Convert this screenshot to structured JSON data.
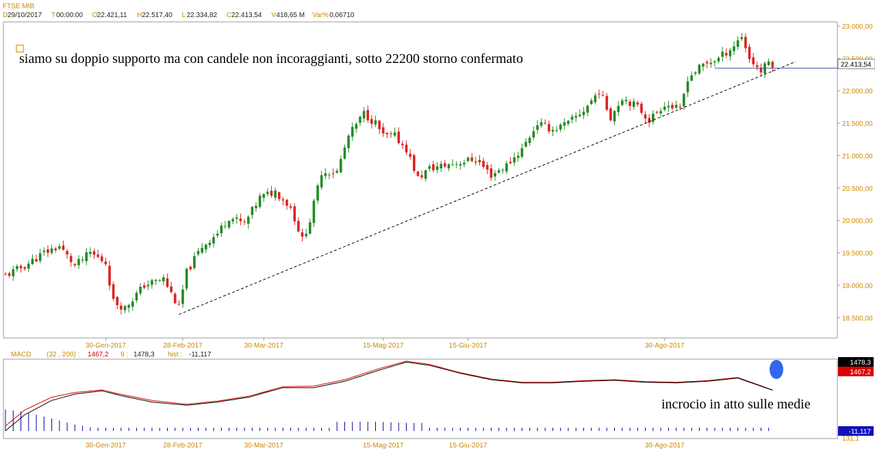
{
  "header": {
    "symbol": "FTSE MIB",
    "items": [
      {
        "key": "D",
        "value": "29/10/2017"
      },
      {
        "key": "T",
        "value": "00:00:00"
      },
      {
        "key": "O",
        "value": "22.421,11"
      },
      {
        "key": "H",
        "value": "22.517,40"
      },
      {
        "key": "L",
        "value": "22.334,82"
      },
      {
        "key": "C",
        "value": "22.413,54"
      },
      {
        "key": "V",
        "value": "418,65 M"
      },
      {
        "key": "Var%",
        "value": "0,06710"
      }
    ]
  },
  "annotations": {
    "main_note": "siamo su doppio supporto ma con candele non incoraggianti, sotto 22200 storno confermato",
    "macd_note": "incrocio in atto sulle medie"
  },
  "colors": {
    "up": "#228b22",
    "down": "#dd2222",
    "axis_text": "#cc8800",
    "macd_line": "#000000",
    "signal_line": "#dd0000",
    "hist": "#000099",
    "last_price_line": "#3355aa",
    "marker": "#3366ee"
  },
  "macd_legend": {
    "name": "MACD",
    "params": "(32 , 200) :",
    "macd_value": "1467,2",
    "signal_label": "9 :",
    "signal_value": "1478,3",
    "hist_label": "hist :",
    "hist_value": "-11,117"
  },
  "chart_data": [
    {
      "type": "candlestick",
      "title": "FTSE MIB",
      "ylim": [
        18250,
        23000
      ],
      "y_ticks": [
        "18.500,00",
        "19.000,00",
        "19.500,00",
        "20.000,00",
        "20.500,00",
        "21.000,00",
        "21.500,00",
        "22.000,00",
        "22.500,00",
        "23.000,00"
      ],
      "y_tick_values": [
        18500,
        19000,
        19500,
        20000,
        20500,
        21000,
        21500,
        22000,
        22500,
        23000
      ],
      "x_ticks": [
        {
          "label": "30-Gen-2017",
          "index": 26
        },
        {
          "label": "28-Feb-2017",
          "index": 46
        },
        {
          "label": "30-Mar-2017",
          "index": 67
        },
        {
          "label": "15-Mag-2017",
          "index": 98
        },
        {
          "label": "15-Giu-2017",
          "index": 120
        },
        {
          "label": "30-Ago-2017",
          "index": 171
        }
      ],
      "n_bars": 200,
      "last_price": 22413.54,
      "last_price_label": "22.413,54",
      "close_anchors": [
        [
          0,
          19150
        ],
        [
          5,
          19300
        ],
        [
          10,
          19500
        ],
        [
          14,
          19600
        ],
        [
          18,
          19300
        ],
        [
          22,
          19500
        ],
        [
          26,
          19350
        ],
        [
          28,
          18750
        ],
        [
          31,
          18650
        ],
        [
          36,
          19000
        ],
        [
          41,
          19100
        ],
        [
          45,
          18650
        ],
        [
          47,
          19200
        ],
        [
          51,
          19600
        ],
        [
          55,
          19800
        ],
        [
          58,
          20050
        ],
        [
          62,
          19950
        ],
        [
          66,
          20350
        ],
        [
          70,
          20450
        ],
        [
          74,
          20200
        ],
        [
          77,
          19700
        ],
        [
          79,
          20000
        ],
        [
          82,
          20750
        ],
        [
          86,
          20750
        ],
        [
          89,
          21300
        ],
        [
          93,
          21650
        ],
        [
          96,
          21500
        ],
        [
          98,
          21300
        ],
        [
          101,
          21300
        ],
        [
          104,
          21100
        ],
        [
          107,
          20650
        ],
        [
          110,
          20800
        ],
        [
          114,
          20850
        ],
        [
          118,
          20900
        ],
        [
          122,
          20950
        ],
        [
          126,
          20700
        ],
        [
          130,
          20850
        ],
        [
          134,
          21100
        ],
        [
          138,
          21500
        ],
        [
          142,
          21400
        ],
        [
          146,
          21500
        ],
        [
          150,
          21700
        ],
        [
          154,
          22000
        ],
        [
          157,
          21600
        ],
        [
          160,
          21900
        ],
        [
          164,
          21750
        ],
        [
          167,
          21550
        ],
        [
          171,
          21800
        ],
        [
          175,
          21700
        ],
        [
          177,
          22200
        ],
        [
          181,
          22400
        ],
        [
          185,
          22500
        ],
        [
          189,
          22700
        ],
        [
          191,
          22850
        ],
        [
          193,
          22500
        ],
        [
          196,
          22300
        ],
        [
          198,
          22450
        ],
        [
          199,
          22413
        ]
      ],
      "support_line": {
        "start": {
          "index": 45,
          "value": 18550
        },
        "end": {
          "index": 205,
          "value": 22450
        }
      },
      "horizontal_level": {
        "start_index": 184,
        "value": 22350
      }
    },
    {
      "type": "macd",
      "fast": 32,
      "slow": 200,
      "signal": 9,
      "macd_value": 1467.2,
      "signal_value": 1478.3,
      "hist_value": -11.117,
      "macd_anchors": [
        [
          0,
          200
        ],
        [
          5,
          700
        ],
        [
          12,
          1150
        ],
        [
          18,
          1350
        ],
        [
          25,
          1450
        ],
        [
          30,
          1300
        ],
        [
          38,
          1100
        ],
        [
          47,
          1000
        ],
        [
          55,
          1100
        ],
        [
          63,
          1250
        ],
        [
          72,
          1550
        ],
        [
          80,
          1550
        ],
        [
          88,
          1750
        ],
        [
          97,
          2100
        ],
        [
          104,
          2350
        ],
        [
          110,
          2250
        ],
        [
          118,
          2000
        ],
        [
          126,
          1800
        ],
        [
          134,
          1700
        ],
        [
          142,
          1700
        ],
        [
          150,
          1750
        ],
        [
          158,
          1780
        ],
        [
          166,
          1720
        ],
        [
          174,
          1700
        ],
        [
          182,
          1750
        ],
        [
          190,
          1850
        ],
        [
          199,
          1470
        ]
      ],
      "signal_anchors": [
        [
          0,
          350
        ],
        [
          5,
          850
        ],
        [
          12,
          1250
        ],
        [
          18,
          1400
        ],
        [
          25,
          1480
        ],
        [
          30,
          1340
        ],
        [
          38,
          1150
        ],
        [
          47,
          1030
        ],
        [
          55,
          1130
        ],
        [
          63,
          1280
        ],
        [
          72,
          1580
        ],
        [
          80,
          1600
        ],
        [
          88,
          1800
        ],
        [
          97,
          2150
        ],
        [
          104,
          2380
        ],
        [
          110,
          2280
        ],
        [
          118,
          2020
        ],
        [
          126,
          1820
        ],
        [
          134,
          1720
        ],
        [
          142,
          1720
        ],
        [
          150,
          1770
        ],
        [
          158,
          1800
        ],
        [
          166,
          1740
        ],
        [
          174,
          1720
        ],
        [
          182,
          1770
        ],
        [
          190,
          1870
        ],
        [
          199,
          1478
        ]
      ],
      "right_labels": [
        "1478,3",
        "1467,2",
        "-11,117"
      ],
      "bottom_label": "131,1",
      "x_ticks": [
        "30-Gen-2017",
        "28-Feb-2017",
        "30-Mar-2017",
        "15-Mag-2017",
        "15-Giu-2017",
        "30-Ago-2017"
      ]
    }
  ]
}
